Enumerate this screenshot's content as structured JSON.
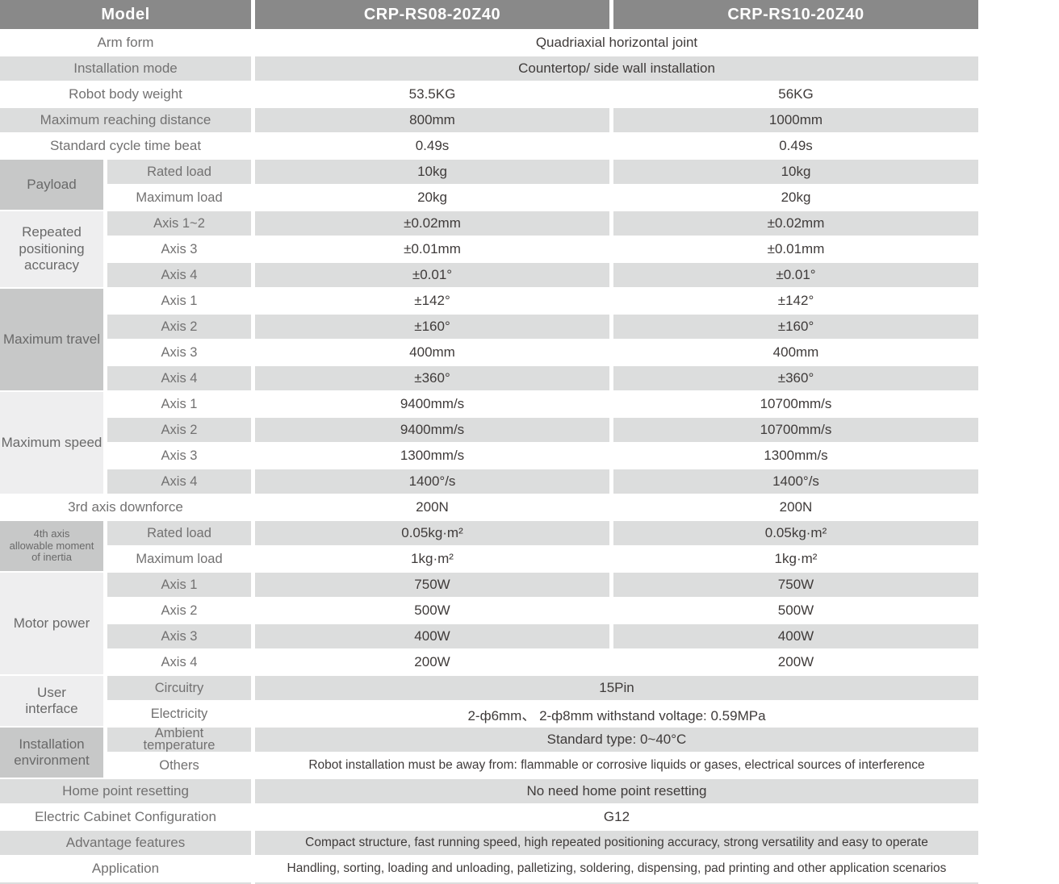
{
  "colors": {
    "header_bg": "#898989",
    "header_text": "#ffffff",
    "row_stripe_gray": "#dcdddd",
    "group_cell_dark": "#c7c8c8",
    "group_cell_light": "#eeeeef",
    "label_text": "#727171",
    "value_text": "#3f3b3a"
  },
  "header": {
    "model_label": "Model",
    "columns": [
      "CRP-RS08-20Z40",
      "CRP-RS10-20Z40"
    ]
  },
  "rows": [
    {
      "label": "Arm form",
      "span": "Quadriaxial horizontal joint"
    },
    {
      "label": "Installation mode",
      "span": "Countertop/ side wall installation"
    },
    {
      "label": "Robot body weight",
      "values": [
        "53.5KG",
        "56KG"
      ]
    },
    {
      "label": "Maximum reaching distance",
      "values": [
        "800mm",
        "1000mm"
      ]
    },
    {
      "label": "Standard cycle time beat",
      "values": [
        "0.49s",
        "0.49s"
      ]
    },
    {
      "group": {
        "label": "Payload",
        "rowspan": 2,
        "shade": "dark"
      },
      "label": "Rated load",
      "values": [
        "10kg",
        "10kg"
      ]
    },
    {
      "sub": true,
      "label": "Maximum load",
      "values": [
        "20kg",
        "20kg"
      ]
    },
    {
      "group": {
        "label": "Repeated\npositioning\naccuracy",
        "rowspan": 3,
        "shade": "light"
      },
      "label": "Axis 1~2",
      "values": [
        "±0.02mm",
        "±0.02mm"
      ]
    },
    {
      "sub": true,
      "label": "Axis 3",
      "values": [
        "±0.01mm",
        "±0.01mm"
      ]
    },
    {
      "sub": true,
      "label": "Axis 4",
      "values": [
        "±0.01°",
        "±0.01°"
      ]
    },
    {
      "group": {
        "label": "Maximum travel",
        "rowspan": 4,
        "shade": "dark"
      },
      "label": "Axis 1",
      "values": [
        "±142°",
        "±142°"
      ]
    },
    {
      "sub": true,
      "label": "Axis 2",
      "values": [
        "±160°",
        "±160°"
      ]
    },
    {
      "sub": true,
      "label": "Axis 3",
      "values": [
        "400mm",
        "400mm"
      ]
    },
    {
      "sub": true,
      "label": "Axis 4",
      "values": [
        "±360°",
        "±360°"
      ]
    },
    {
      "group": {
        "label": "Maximum speed",
        "rowspan": 4,
        "shade": "light"
      },
      "label": "Axis 1",
      "values": [
        "9400mm/s",
        "10700mm/s"
      ]
    },
    {
      "sub": true,
      "label": "Axis 2",
      "values": [
        "9400mm/s",
        "10700mm/s"
      ]
    },
    {
      "sub": true,
      "label": "Axis 3",
      "values": [
        "1300mm/s",
        "1300mm/s"
      ]
    },
    {
      "sub": true,
      "label": "Axis 4",
      "values": [
        "1400°/s",
        "1400°/s"
      ]
    },
    {
      "label": "3rd axis downforce",
      "values": [
        "200N",
        "200N"
      ]
    },
    {
      "group": {
        "label": "4th axis\nallowable moment\nof inertia",
        "rowspan": 2,
        "shade": "dark",
        "small": true
      },
      "label": "Rated load",
      "values": [
        "0.05kg·m²",
        "0.05kg·m²"
      ]
    },
    {
      "sub": true,
      "label": "Maximum load",
      "values": [
        "1kg·m²",
        "1kg·m²"
      ]
    },
    {
      "group": {
        "label": "Motor power",
        "rowspan": 4,
        "shade": "light"
      },
      "label": "Axis 1",
      "values": [
        "750W",
        "750W"
      ]
    },
    {
      "sub": true,
      "label": "Axis 2",
      "values": [
        "500W",
        "500W"
      ]
    },
    {
      "sub": true,
      "label": "Axis 3",
      "values": [
        "400W",
        "400W"
      ]
    },
    {
      "sub": true,
      "label": "Axis 4",
      "values": [
        "200W",
        "200W"
      ]
    },
    {
      "group": {
        "label": "User\ninterface",
        "rowspan": 2,
        "shade": "light"
      },
      "label": "Circuitry",
      "span": "15Pin"
    },
    {
      "sub": true,
      "label": "Electricity",
      "span": "2-ф6mm、 2-ф8mm withstand voltage: 0.59MPa"
    },
    {
      "group": {
        "label": "Installation\nenvironment",
        "rowspan": 2,
        "shade": "dark"
      },
      "label": "Ambient\ntemperature",
      "span": "Standard type:  0~40°C"
    },
    {
      "sub": true,
      "label": "Others",
      "span": "Robot installation must be away from: flammable or corrosive liquids or gases, electrical sources of interference",
      "long": true
    },
    {
      "label": "Home point resetting",
      "span": "No need home point resetting"
    },
    {
      "label": "Electric Cabinet Configuration",
      "span": "G12"
    },
    {
      "label": "Advantage features",
      "span": "Compact structure, fast running speed, high repeated positioning accuracy, strong versatility and easy to operate",
      "long": true
    },
    {
      "label": "Application",
      "span": "Handling, sorting, loading and unloading, palletizing, soldering, dispensing, pad printing and other application scenarios",
      "long": true
    },
    {
      "cut": true,
      "label": "",
      "span": ""
    }
  ]
}
